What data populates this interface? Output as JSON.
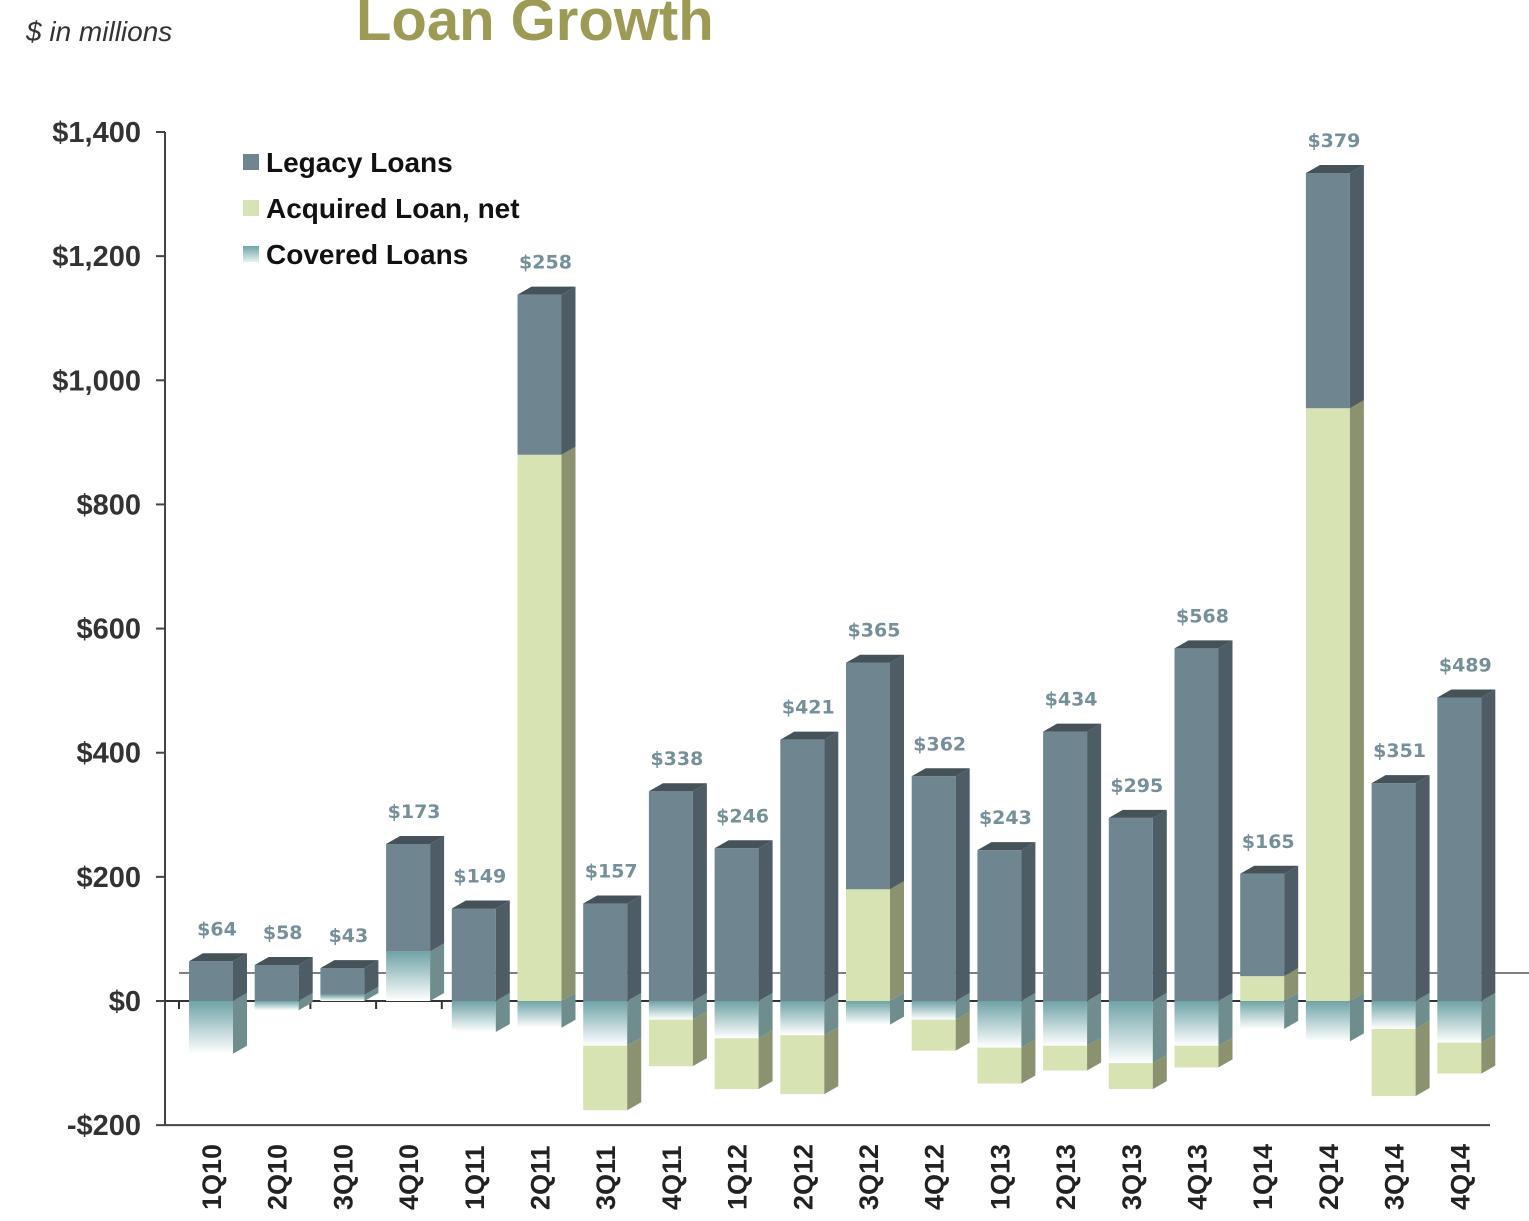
{
  "header": {
    "title": "Loan Growth",
    "subtitle": "$ in millions"
  },
  "colors": {
    "legacy": "#6f8590",
    "acquired": "#d8e3b4",
    "covered": "#9ec9c9",
    "title": "#9d9a55",
    "data_label": "#75909a"
  },
  "chart_data": {
    "type": "bar",
    "stacked": true,
    "title": "Loan Growth",
    "ylabel": "$ in millions",
    "ylim": [
      -200,
      1400
    ],
    "yticks": [
      -200,
      0,
      200,
      400,
      600,
      800,
      1000,
      1200,
      1400
    ],
    "ytick_labels": [
      "-$200",
      "$0",
      "$200",
      "$400",
      "$600",
      "$800",
      "$1,000",
      "$1,200",
      "$1,400"
    ],
    "legend_position": "top-left",
    "categories": [
      "1Q10",
      "2Q10",
      "3Q10",
      "4Q10",
      "1Q11",
      "2Q11",
      "3Q11",
      "4Q11",
      "1Q12",
      "2Q12",
      "3Q12",
      "4Q12",
      "1Q13",
      "2Q13",
      "3Q13",
      "4Q13",
      "1Q14",
      "2Q14",
      "3Q14",
      "4Q14"
    ],
    "series": [
      {
        "name": "Legacy Loans",
        "key": "legacy",
        "values": [
          64,
          58,
          43,
          173,
          149,
          258,
          157,
          338,
          246,
          421,
          365,
          362,
          243,
          434,
          295,
          568,
          165,
          379,
          351,
          489
        ]
      },
      {
        "name": "Acquired Loan, net",
        "key": "acquired",
        "values": [
          0,
          0,
          0,
          0,
          0,
          880,
          -104,
          -75,
          -82,
          -95,
          180,
          -50,
          -58,
          -40,
          -42,
          -35,
          40,
          955,
          -108,
          -50
        ]
      },
      {
        "name": "Covered Loans",
        "key": "covered",
        "values": [
          -85,
          -15,
          10,
          80,
          -50,
          -43,
          -72,
          -30,
          -60,
          -55,
          -38,
          -30,
          -75,
          -72,
          -100,
          -72,
          -45,
          -65,
          -45,
          -67
        ]
      }
    ],
    "data_labels": [
      "$64",
      "$58",
      "$43",
      "$173",
      "$149",
      "$258",
      "$157",
      "$338",
      "$246",
      "$421",
      "$365",
      "$362",
      "$243",
      "$434",
      "$295",
      "$568",
      "$165",
      "$379",
      "$351",
      "$489"
    ]
  }
}
